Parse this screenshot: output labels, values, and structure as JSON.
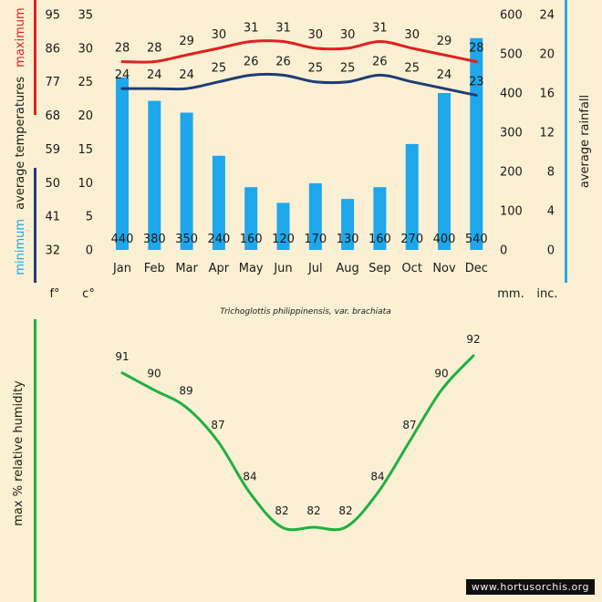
{
  "colors": {
    "background": "#fbf0d3",
    "max_line": "#e02020",
    "min_line": "#1f3d75",
    "rain_bar": "#1ea7ea",
    "humidity_line": "#1fb043",
    "rain_accent": "#29a8e0"
  },
  "caption": "Trichoglottis philippinensis, var. brachiata",
  "watermark": "www.hortusorchis.org",
  "labels": {
    "minimum": "minimum",
    "average_temperatures": "average  temperatures",
    "maximum": "maximum",
    "average_rainfall": "average rainfall",
    "humidity": "max  %  relative humidity",
    "unit_f": "f°",
    "unit_c": "c°",
    "unit_mm": "mm.",
    "unit_inc": "inc."
  },
  "chart_data": [
    {
      "type": "bar+line",
      "title": "Trichoglottis philippinensis, var. brachiata",
      "categories": [
        "Jan",
        "Feb",
        "Mar",
        "Apr",
        "May",
        "Jun",
        "Jul",
        "Aug",
        "Sep",
        "Oct",
        "Nov",
        "Dec"
      ],
      "series": [
        {
          "name": "maximum",
          "unit": "°C",
          "values": [
            28,
            28,
            29,
            30,
            31,
            31,
            30,
            30,
            31,
            30,
            29,
            28
          ]
        },
        {
          "name": "minimum",
          "unit": "°C",
          "values": [
            24,
            24,
            24,
            25,
            26,
            26,
            25,
            25,
            26,
            25,
            24,
            23
          ]
        },
        {
          "name": "average rainfall",
          "unit": "mm",
          "values": [
            440,
            380,
            350,
            240,
            160,
            120,
            170,
            130,
            160,
            270,
            400,
            540
          ]
        }
      ],
      "axes": {
        "fahrenheit_ticks": [
          "95",
          "86",
          "77",
          "68",
          "59",
          "50",
          "41",
          "32"
        ],
        "celsius_ticks": [
          "35",
          "30",
          "25",
          "20",
          "15",
          "10",
          "5",
          "0"
        ],
        "celsius_range": [
          0,
          35
        ],
        "mm_ticks": [
          "600",
          "500",
          "400",
          "300",
          "200",
          "100",
          "0"
        ],
        "mm_range": [
          0,
          600
        ],
        "inch_ticks": [
          "24",
          "20",
          "16",
          "12",
          "8",
          "4",
          "0"
        ]
      }
    },
    {
      "type": "line",
      "title": "max % relative humidity",
      "categories": [
        "Jan",
        "Feb",
        "Mar",
        "Apr",
        "May",
        "Jun",
        "Jul",
        "Aug",
        "Sep",
        "Oct",
        "Nov",
        "Dec"
      ],
      "values": [
        91,
        90,
        89,
        87,
        84,
        82,
        82,
        82,
        84,
        87,
        90,
        92
      ]
    }
  ]
}
